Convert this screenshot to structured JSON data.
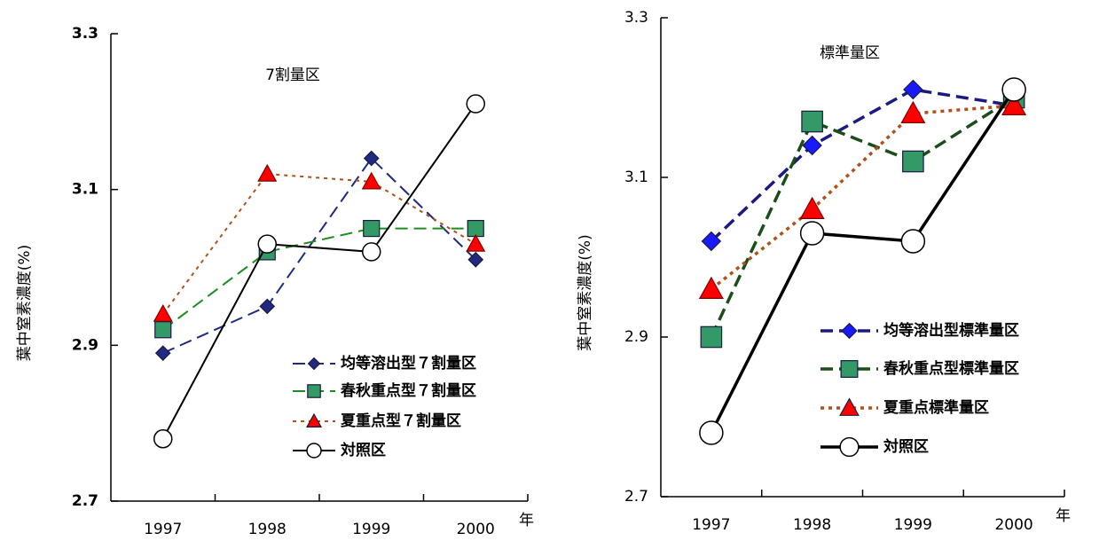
{
  "chart_data": [
    {
      "type": "line",
      "title": "7割量区",
      "y_label": "葉中窒素濃度(%)",
      "x_unit": "年",
      "categories": [
        "1997",
        "1998",
        "1999",
        "2000"
      ],
      "ylim": [
        2.7,
        3.3
      ],
      "yticks": [
        2.7,
        2.9,
        3.1,
        3.3
      ],
      "series": [
        {
          "name": "均等溶出型７割量区",
          "color": "#1f2a80",
          "line_color": "#1f2a80",
          "marker": "diamond",
          "dash": "dashed",
          "values": [
            2.89,
            2.95,
            3.14,
            3.01
          ]
        },
        {
          "name": "春秋重点型７割量区",
          "color": "#339966",
          "line_color": "#1e8c1e",
          "marker": "square",
          "dash": "dashed",
          "values": [
            2.92,
            3.02,
            3.05,
            3.05
          ]
        },
        {
          "name": "夏重点型７割量区",
          "color": "#ff0000",
          "line_color": "#b0501a",
          "marker": "triangle",
          "dash": "dotted",
          "values": [
            2.94,
            3.12,
            3.11,
            3.03
          ]
        },
        {
          "name": "対照区",
          "color": "#ffffff",
          "line_color": "#000000",
          "marker": "circle",
          "dash": "solid",
          "values": [
            2.78,
            3.03,
            3.02,
            3.21
          ]
        }
      ]
    },
    {
      "type": "line",
      "title": "標準量区",
      "y_label": "葉中窒素濃度(%)",
      "x_unit": "年",
      "categories": [
        "1997",
        "1998",
        "1999",
        "2000"
      ],
      "ylim": [
        2.7,
        3.3
      ],
      "yticks": [
        2.7,
        2.9,
        3.1,
        3.3
      ],
      "series": [
        {
          "name": "均等溶出型標準量区",
          "color": "#1a1aff",
          "line_color": "#1a1a80",
          "marker": "diamond",
          "dash": "dashed",
          "values": [
            3.02,
            3.14,
            3.21,
            3.19
          ]
        },
        {
          "name": "春秋重点型標準量区",
          "color": "#339966",
          "line_color": "#1a4d1a",
          "marker": "square",
          "dash": "dashed",
          "values": [
            2.9,
            3.17,
            3.12,
            3.2
          ]
        },
        {
          "name": "夏重点標準量区",
          "color": "#ff0000",
          "line_color": "#b0501a",
          "marker": "triangle",
          "dash": "dotted",
          "values": [
            2.96,
            3.06,
            3.18,
            3.19
          ]
        },
        {
          "name": "対照区",
          "color": "#ffffff",
          "line_color": "#000000",
          "marker": "circle",
          "dash": "solid",
          "values": [
            2.78,
            3.03,
            3.02,
            3.21
          ]
        }
      ]
    }
  ]
}
